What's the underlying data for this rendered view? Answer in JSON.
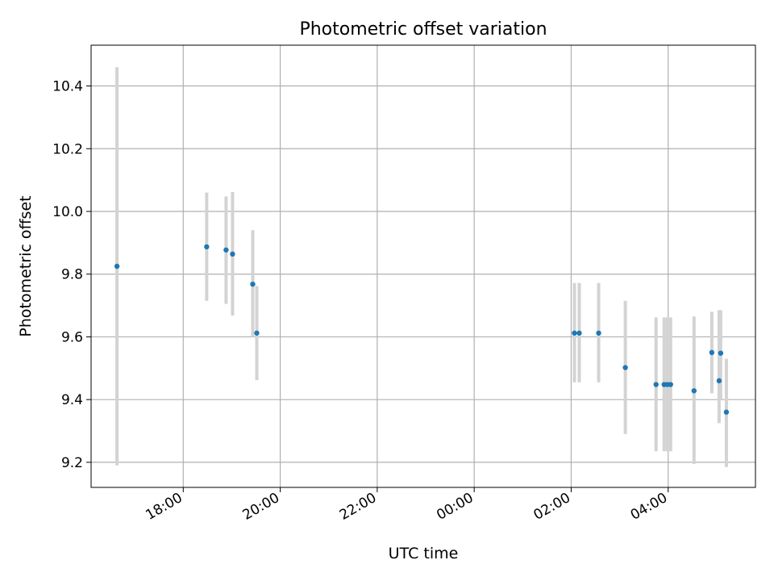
{
  "chart_data": {
    "type": "scatter",
    "title": "Photometric offset variation",
    "xlabel": "UTC time",
    "ylabel": "Photometric offset",
    "x_axis": "time (UTC, hours; 00:00 marks the next day)",
    "xlim": [
      "16:06",
      "05:48"
    ],
    "ylim": [
      9.12,
      10.53
    ],
    "grid": true,
    "x_ticks": [
      "18:00",
      "20:00",
      "22:00",
      "00:00",
      "02:00",
      "04:00"
    ],
    "y_ticks": [
      "9.2",
      "9.4",
      "9.6",
      "9.8",
      "10.0",
      "10.2",
      "10.4"
    ],
    "point_color": "#1f77b4",
    "errorbar_color": "#d3d3d3",
    "grid_color": "#b0b0b0",
    "points": [
      {
        "x": "16:38",
        "y": 9.825,
        "lo": 9.19,
        "hi": 10.46
      },
      {
        "x": "18:29",
        "y": 9.887,
        "lo": 9.715,
        "hi": 10.06
      },
      {
        "x": "18:53",
        "y": 9.877,
        "lo": 9.705,
        "hi": 10.048
      },
      {
        "x": "19:01",
        "y": 9.864,
        "lo": 9.668,
        "hi": 10.062
      },
      {
        "x": "19:26",
        "y": 9.768,
        "lo": 9.6,
        "hi": 9.94
      },
      {
        "x": "19:31",
        "y": 9.612,
        "lo": 9.462,
        "hi": 9.762
      },
      {
        "x": "02:04",
        "y": 9.612,
        "lo": 9.455,
        "hi": 9.772
      },
      {
        "x": "02:10",
        "y": 9.612,
        "lo": 9.455,
        "hi": 9.772
      },
      {
        "x": "02:34",
        "y": 9.612,
        "lo": 9.455,
        "hi": 9.772
      },
      {
        "x": "03:07",
        "y": 9.502,
        "lo": 9.29,
        "hi": 9.715
      },
      {
        "x": "03:45",
        "y": 9.448,
        "lo": 9.235,
        "hi": 9.662
      },
      {
        "x": "03:55",
        "y": 9.448,
        "lo": 9.235,
        "hi": 9.662
      },
      {
        "x": "03:59",
        "y": 9.448,
        "lo": 9.235,
        "hi": 9.662
      },
      {
        "x": "04:03",
        "y": 9.448,
        "lo": 9.235,
        "hi": 9.662
      },
      {
        "x": "04:32",
        "y": 9.428,
        "lo": 9.195,
        "hi": 9.665
      },
      {
        "x": "04:54",
        "y": 9.55,
        "lo": 9.42,
        "hi": 9.68
      },
      {
        "x": "05:03",
        "y": 9.46,
        "lo": 9.325,
        "hi": 9.685
      },
      {
        "x": "05:05",
        "y": 9.548,
        "lo": 9.4,
        "hi": 9.685
      },
      {
        "x": "05:12",
        "y": 9.36,
        "lo": 9.185,
        "hi": 9.53
      }
    ]
  }
}
